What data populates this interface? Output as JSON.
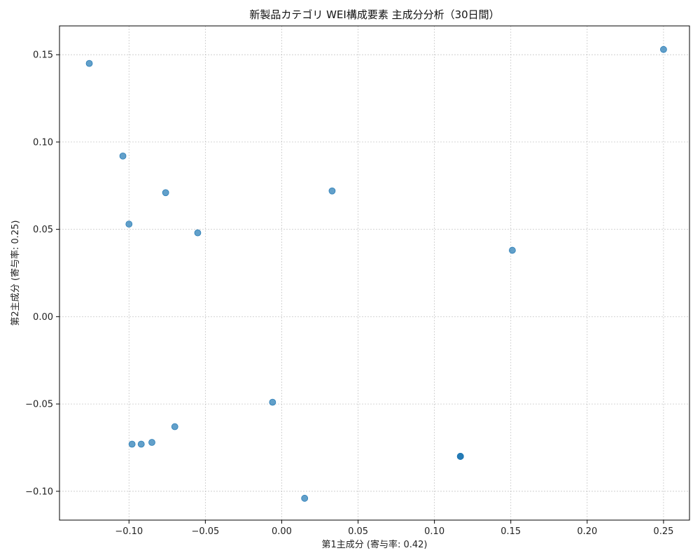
{
  "chart_data": {
    "type": "scatter",
    "title": "新製品カテゴリ WEI構成要素 主成分分析（30日間）",
    "xlabel": "第1主成分 (寄与率: 0.42)",
    "ylabel": "第2主成分 (寄与率: 0.25)",
    "xlim": [
      -0.1455,
      0.267
    ],
    "ylim": [
      -0.1165,
      0.1665
    ],
    "xticks": [
      -0.1,
      -0.05,
      0.0,
      0.05,
      0.1,
      0.15,
      0.2,
      0.25
    ],
    "xtick_labels": [
      "−0.10",
      "−0.05",
      "0.00",
      "0.05",
      "0.10",
      "0.15",
      "0.20",
      "0.25"
    ],
    "yticks": [
      -0.1,
      -0.05,
      0.0,
      0.05,
      0.1,
      0.15
    ],
    "ytick_labels": [
      "−0.10",
      "−0.05",
      "0.00",
      "0.05",
      "0.10",
      "0.15"
    ],
    "grid": true,
    "marker_color": "#1f77b4",
    "points": [
      {
        "x": -0.126,
        "y": 0.145
      },
      {
        "x": 0.25,
        "y": 0.153
      },
      {
        "x": -0.104,
        "y": 0.092
      },
      {
        "x": -0.076,
        "y": 0.071
      },
      {
        "x": 0.033,
        "y": 0.072
      },
      {
        "x": -0.1,
        "y": 0.053
      },
      {
        "x": -0.055,
        "y": 0.048
      },
      {
        "x": 0.151,
        "y": 0.038
      },
      {
        "x": -0.006,
        "y": -0.049
      },
      {
        "x": -0.07,
        "y": -0.063
      },
      {
        "x": -0.085,
        "y": -0.072
      },
      {
        "x": -0.092,
        "y": -0.073
      },
      {
        "x": -0.098,
        "y": -0.073
      },
      {
        "x": 0.117,
        "y": -0.08
      },
      {
        "x": 0.117,
        "y": -0.08
      },
      {
        "x": 0.117,
        "y": -0.08
      },
      {
        "x": 0.015,
        "y": -0.104
      }
    ]
  }
}
